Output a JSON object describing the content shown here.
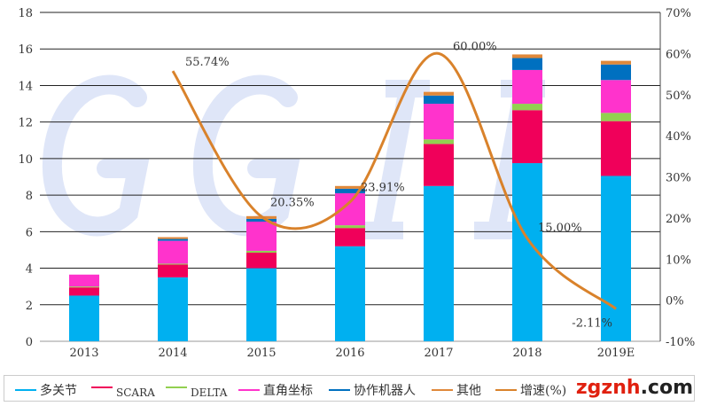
{
  "chart_data": {
    "type": "bar",
    "stacked": true,
    "categories": [
      "2013",
      "2014",
      "2015",
      "2016",
      "2017",
      "2018",
      "2019E"
    ],
    "series": [
      {
        "name": "多关节",
        "color": "#00b0f0",
        "values": [
          2.5,
          3.5,
          4.0,
          5.2,
          8.5,
          9.75,
          9.05
        ]
      },
      {
        "name": "SCARA",
        "color": "#f0005a",
        "values": [
          0.45,
          0.7,
          0.85,
          1.0,
          2.3,
          2.9,
          3.0
        ]
      },
      {
        "name": "DELTA",
        "color": "#92d050",
        "values": [
          0.05,
          0.05,
          0.1,
          0.15,
          0.25,
          0.35,
          0.45
        ]
      },
      {
        "name": "直角坐标",
        "color": "#ff33cc",
        "values": [
          0.65,
          1.25,
          1.6,
          1.75,
          1.95,
          1.85,
          1.8
        ]
      },
      {
        "name": "协作机器人",
        "color": "#0070c0",
        "values": [
          0,
          0.1,
          0.15,
          0.25,
          0.45,
          0.65,
          0.85
        ]
      },
      {
        "name": "其他",
        "color": "#e0883a",
        "values": [
          0,
          0.1,
          0.15,
          0.15,
          0.2,
          0.2,
          0.2
        ]
      }
    ],
    "line": {
      "name": "增速(%)",
      "color": "#d9822b",
      "x": [
        "2014",
        "2015",
        "2016",
        "2017",
        "2018",
        "2019E"
      ],
      "values": [
        55.74,
        20.35,
        23.91,
        60.0,
        15.0,
        -2.11
      ],
      "labels": [
        "55.74%",
        "20.35%",
        "23.91%",
        "60.00%",
        "15.00%",
        "-2.11%"
      ]
    },
    "y_left": {
      "lim": [
        0,
        18
      ],
      "ticks": [
        "0",
        "2",
        "4",
        "6",
        "8",
        "10",
        "12",
        "14",
        "16",
        "18"
      ]
    },
    "y_right": {
      "lim": [
        -10,
        70
      ],
      "ticks": [
        "-10%",
        "0%",
        "10%",
        "20%",
        "30%",
        "40%",
        "50%",
        "60%",
        "70%"
      ]
    },
    "grid": true,
    "legend": "bottom",
    "watermark": "GGII"
  },
  "site_watermark": {
    "a": "zgznh",
    "b": ".com"
  }
}
